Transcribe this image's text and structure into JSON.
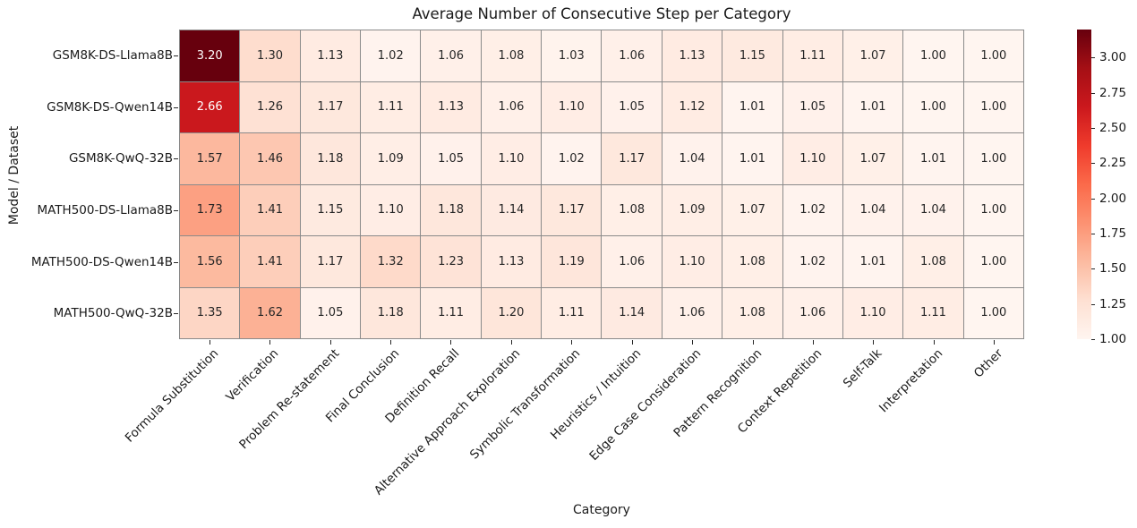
{
  "chart_data": {
    "type": "heatmap",
    "title": "Average Number of Consecutive Step per Category",
    "xlabel": "Category",
    "ylabel": "Model / Dataset",
    "rows": [
      "GSM8K-DS-Llama8B",
      "GSM8K-DS-Qwen14B",
      "GSM8K-QwQ-32B",
      "MATH500-DS-Llama8B",
      "MATH500-DS-Qwen14B",
      "MATH500-QwQ-32B"
    ],
    "columns": [
      "Formula Substitution",
      "Verification",
      "Problem Re-statement",
      "Final Conclusion",
      "Definition Recall",
      "Alternative Approach Exploration",
      "Symbolic Transformation",
      "Heuristics / Intuition",
      "Edge Case Consideration",
      "Pattern Recognition",
      "Context Repetition",
      "Self-Talk",
      "Interpretation",
      "Other"
    ],
    "values": [
      [
        3.2,
        1.3,
        1.13,
        1.02,
        1.06,
        1.08,
        1.03,
        1.06,
        1.13,
        1.15,
        1.11,
        1.07,
        1.0,
        1.0
      ],
      [
        2.66,
        1.26,
        1.17,
        1.11,
        1.13,
        1.06,
        1.1,
        1.05,
        1.12,
        1.01,
        1.05,
        1.01,
        1.0,
        1.0
      ],
      [
        1.57,
        1.46,
        1.18,
        1.09,
        1.05,
        1.1,
        1.02,
        1.17,
        1.04,
        1.01,
        1.1,
        1.07,
        1.01,
        1.0
      ],
      [
        1.73,
        1.41,
        1.15,
        1.1,
        1.18,
        1.14,
        1.17,
        1.08,
        1.09,
        1.07,
        1.02,
        1.04,
        1.04,
        1.0
      ],
      [
        1.56,
        1.41,
        1.17,
        1.32,
        1.23,
        1.13,
        1.19,
        1.06,
        1.1,
        1.08,
        1.02,
        1.01,
        1.08,
        1.0
      ],
      [
        1.35,
        1.62,
        1.05,
        1.18,
        1.11,
        1.2,
        1.11,
        1.14,
        1.06,
        1.08,
        1.06,
        1.1,
        1.11,
        1.0
      ]
    ],
    "colormap": "Reds",
    "vmin": 1.0,
    "vmax": 3.2,
    "colorbar_ticks": [
      3.0,
      2.75,
      2.5,
      2.25,
      2.0,
      1.75,
      1.5,
      1.25,
      1.0
    ],
    "grid_line_color": "#8a8a8a",
    "annotation_dark_text": "#262626",
    "annotation_light_text": "#ffffff"
  }
}
